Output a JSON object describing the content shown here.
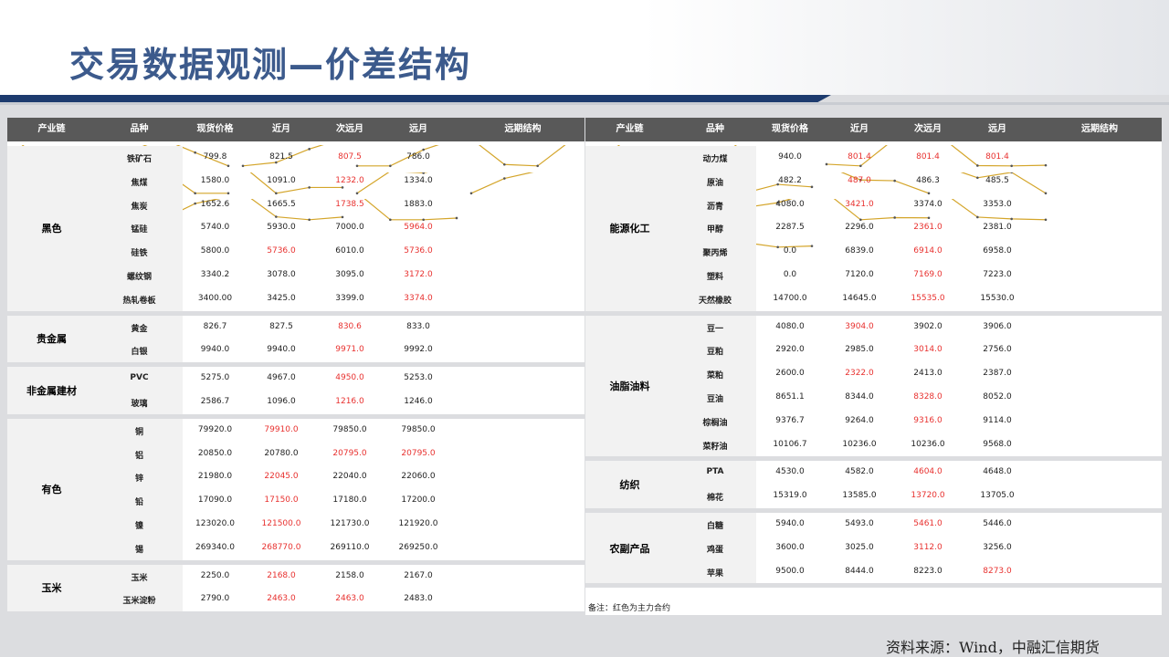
{
  "title": "交易数据观测—价差结构",
  "source": "资料来源：Wind，中融汇信期货",
  "note": "备注：红色为主力合约",
  "highlight_color": "#e8312f",
  "line_color": "#d4a52a",
  "tables": [
    {
      "headers": [
        "产业链",
        "品种",
        "现货价格",
        "近月",
        "次远月",
        "远月",
        "远期结构"
      ],
      "groups": [
        {
          "name": "黑色",
          "rows": [
            {
              "name": "铁矿石",
              "values": [
                "799.8",
                "821.5",
                "807.5",
                "786.0"
              ],
              "main": [
                2
              ]
            },
            {
              "name": "焦煤",
              "values": [
                "1580.0",
                "1091.0",
                "1232.0",
                "1334.0"
              ],
              "main": [
                2
              ]
            },
            {
              "name": "焦炭",
              "values": [
                "1652.6",
                "1665.5",
                "1738.5",
                "1883.0"
              ],
              "main": [
                2
              ]
            },
            {
              "name": "锰硅",
              "values": [
                "5740.0",
                "5930.0",
                "7000.0",
                "5964.0"
              ],
              "main": [
                3
              ]
            },
            {
              "name": "硅铁",
              "values": [
                "5800.0",
                "5736.0",
                "6010.0",
                "5736.0"
              ],
              "main": [
                1,
                3
              ]
            },
            {
              "name": "螺纹钢",
              "values": [
                "3340.2",
                "3078.0",
                "3095.0",
                "3172.0"
              ],
              "main": [
                3
              ]
            },
            {
              "name": "热轧卷板",
              "values": [
                "3400.00",
                "3425.0",
                "3399.0",
                "3374.0"
              ],
              "main": [
                3
              ]
            }
          ]
        },
        {
          "name": "贵金属",
          "rows": [
            {
              "name": "黄金",
              "values": [
                "826.7",
                "827.5",
                "830.6",
                "833.0"
              ],
              "main": [
                2
              ]
            },
            {
              "name": "白银",
              "values": [
                "9940.0",
                "9940.0",
                "9971.0",
                "9992.0"
              ],
              "main": [
                2
              ]
            }
          ]
        },
        {
          "name": "非金属建材",
          "rows": [
            {
              "name": "PVC",
              "values": [
                "5275.0",
                "4967.0",
                "4950.0",
                "5253.0"
              ],
              "main": [
                2
              ]
            },
            {
              "name": "玻璃",
              "values": [
                "2586.7",
                "1096.0",
                "1216.0",
                "1246.0"
              ],
              "main": [
                2
              ]
            }
          ]
        },
        {
          "name": "有色",
          "rows": [
            {
              "name": "铜",
              "values": [
                "79920.0",
                "79910.0",
                "79850.0",
                "79850.0"
              ],
              "main": [
                1
              ]
            },
            {
              "name": "铝",
              "values": [
                "20850.0",
                "20780.0",
                "20795.0",
                "20795.0"
              ],
              "main": [
                2,
                3
              ]
            },
            {
              "name": "锌",
              "values": [
                "21980.0",
                "22045.0",
                "22040.0",
                "22060.0"
              ],
              "main": [
                1
              ]
            },
            {
              "name": "铅",
              "values": [
                "17090.0",
                "17150.0",
                "17180.0",
                "17200.0"
              ],
              "main": [
                1
              ]
            },
            {
              "name": "镍",
              "values": [
                "123020.0",
                "121500.0",
                "121730.0",
                "121920.0"
              ],
              "main": [
                1
              ]
            },
            {
              "name": "锡",
              "values": [
                "269340.0",
                "268770.0",
                "269110.0",
                "269250.0"
              ],
              "main": [
                1
              ]
            }
          ]
        },
        {
          "name": "玉米",
          "rows": [
            {
              "name": "玉米",
              "values": [
                "2250.0",
                "2168.0",
                "2158.0",
                "2167.0"
              ],
              "main": [
                1
              ]
            },
            {
              "name": "玉米淀粉",
              "values": [
                "2790.0",
                "2463.0",
                "2463.0",
                "2483.0"
              ],
              "main": [
                1,
                2
              ]
            }
          ]
        }
      ]
    },
    {
      "headers": [
        "产业链",
        "品种",
        "现货价格",
        "近月",
        "次远月",
        "远月",
        "远期结构"
      ],
      "groups": [
        {
          "name": "能源化工",
          "rows": [
            {
              "name": "动力煤",
              "values": [
                "940.0",
                "801.4",
                "801.4",
                "801.4"
              ],
              "main": [
                1,
                2,
                3
              ]
            },
            {
              "name": "原油",
              "values": [
                "482.2",
                "487.0",
                "486.3",
                "485.5"
              ],
              "main": [
                1
              ]
            },
            {
              "name": "沥青",
              "values": [
                "4080.0",
                "3421.0",
                "3374.0",
                "3353.0"
              ],
              "main": [
                1
              ]
            },
            {
              "name": "甲醇",
              "values": [
                "2287.5",
                "2296.0",
                "2361.0",
                "2381.0"
              ],
              "main": [
                2
              ]
            },
            {
              "name": "聚丙烯",
              "values": [
                "0.0",
                "6839.0",
                "6914.0",
                "6958.0"
              ],
              "main": [
                2
              ]
            },
            {
              "name": "塑料",
              "values": [
                "0.0",
                "7120.0",
                "7169.0",
                "7223.0"
              ],
              "main": [
                2
              ]
            },
            {
              "name": "天然橡胶",
              "values": [
                "14700.0",
                "14645.0",
                "15535.0",
                "15530.0"
              ],
              "main": [
                2
              ]
            }
          ]
        },
        {
          "name": "油脂油料",
          "rows": [
            {
              "name": "豆一",
              "values": [
                "4080.0",
                "3904.0",
                "3902.0",
                "3906.0"
              ],
              "main": [
                1
              ]
            },
            {
              "name": "豆粕",
              "values": [
                "2920.0",
                "2985.0",
                "3014.0",
                "2756.0"
              ],
              "main": [
                2
              ]
            },
            {
              "name": "菜粕",
              "values": [
                "2600.0",
                "2322.0",
                "2413.0",
                "2387.0"
              ],
              "main": [
                1
              ]
            },
            {
              "name": "豆油",
              "values": [
                "8651.1",
                "8344.0",
                "8328.0",
                "8052.0"
              ],
              "main": [
                2
              ]
            },
            {
              "name": "棕榈油",
              "values": [
                "9376.7",
                "9264.0",
                "9316.0",
                "9114.0"
              ],
              "main": [
                2
              ]
            },
            {
              "name": "菜籽油",
              "values": [
                "10106.7",
                "10236.0",
                "10236.0",
                "9568.0"
              ],
              "main": []
            }
          ]
        },
        {
          "name": "纺织",
          "rows": [
            {
              "name": "PTA",
              "values": [
                "4530.0",
                "4582.0",
                "4604.0",
                "4648.0"
              ],
              "main": [
                2
              ]
            },
            {
              "name": "棉花",
              "values": [
                "15319.0",
                "13585.0",
                "13720.0",
                "13705.0"
              ],
              "main": [
                2
              ]
            }
          ]
        },
        {
          "name": "农副产品",
          "rows": [
            {
              "name": "白糖",
              "values": [
                "5940.0",
                "5493.0",
                "5461.0",
                "5446.0"
              ],
              "main": [
                2
              ]
            },
            {
              "name": "鸡蛋",
              "values": [
                "3600.0",
                "3025.0",
                "3112.0",
                "3256.0"
              ],
              "main": [
                2
              ]
            },
            {
              "name": "苹果",
              "values": [
                "9500.0",
                "8444.0",
                "8223.0",
                "8273.0"
              ],
              "main": [
                3
              ]
            }
          ]
        }
      ]
    }
  ]
}
